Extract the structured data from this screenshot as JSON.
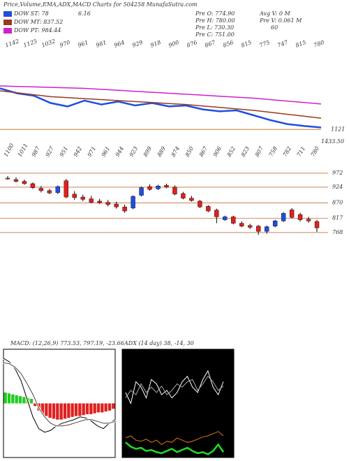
{
  "header": {
    "title": "Price,Volume,EMA,ADX,MACD Charts for 504258 MunafaSutra.com",
    "extra": "6.16",
    "info": [
      "Pre O: 774.90",
      "Pre H: 780.00",
      "Pre L: 730.30",
      "Pre C: 751.00"
    ],
    "info2": [
      "Avg V: 0  M",
      "Pre V: 0.061 M",
      "60"
    ]
  },
  "chart_data": [
    {
      "type": "line",
      "series": [
        {
          "name": "DOW ST: 78",
          "color": "#1f4fe0",
          "values": [
            1205,
            1195,
            1190,
            1175,
            1168,
            1180,
            1172,
            1178,
            1170,
            1175,
            1168,
            1170,
            1162,
            1158,
            1160,
            1150,
            1140,
            1132,
            1128,
            1125
          ]
        },
        {
          "name": "DOW MT: 837.52",
          "color": "#9a3a1a",
          "values": [
            1200,
            1196,
            1192,
            1188,
            1186,
            1184,
            1182,
            1180,
            1178,
            1176,
            1174,
            1172,
            1169,
            1166,
            1163,
            1160,
            1156,
            1152,
            1148,
            1144
          ]
        },
        {
          "name": "DOW PT: 984.44",
          "color": "#d020d0",
          "values": [
            1210,
            1209,
            1208,
            1207,
            1206,
            1205,
            1203,
            1201,
            1199,
            1197,
            1195,
            1193,
            1191,
            1189,
            1187,
            1185,
            1182,
            1179,
            1176,
            1173
          ]
        }
      ],
      "ylim": [
        1100,
        1300
      ],
      "yticks": [
        1121
      ],
      "annotation": "1433.50",
      "top_labels": [
        "1142",
        "1125",
        "1032",
        "970",
        "961",
        "981",
        "964",
        "929",
        "918",
        "900",
        "876",
        "867",
        "856",
        "815",
        "775",
        "747",
        "815",
        "780"
      ]
    },
    {
      "type": "candlestick",
      "candles": [
        {
          "o": 955,
          "h": 962,
          "l": 950,
          "c": 952
        },
        {
          "o": 950,
          "h": 958,
          "l": 940,
          "c": 944
        },
        {
          "o": 944,
          "h": 950,
          "l": 932,
          "c": 936
        },
        {
          "o": 936,
          "h": 940,
          "l": 918,
          "c": 922
        },
        {
          "o": 920,
          "h": 928,
          "l": 906,
          "c": 912
        },
        {
          "o": 912,
          "h": 918,
          "l": 900,
          "c": 904
        },
        {
          "o": 905,
          "h": 930,
          "l": 900,
          "c": 926
        },
        {
          "o": 946,
          "h": 952,
          "l": 886,
          "c": 890
        },
        {
          "o": 900,
          "h": 910,
          "l": 880,
          "c": 888
        },
        {
          "o": 890,
          "h": 898,
          "l": 876,
          "c": 882
        },
        {
          "o": 884,
          "h": 894,
          "l": 868,
          "c": 872
        },
        {
          "o": 876,
          "h": 884,
          "l": 866,
          "c": 870
        },
        {
          "o": 872,
          "h": 880,
          "l": 858,
          "c": 864
        },
        {
          "o": 866,
          "h": 874,
          "l": 850,
          "c": 856
        },
        {
          "o": 856,
          "h": 864,
          "l": 836,
          "c": 842
        },
        {
          "o": 852,
          "h": 896,
          "l": 848,
          "c": 892
        },
        {
          "o": 896,
          "h": 926,
          "l": 892,
          "c": 922
        },
        {
          "o": 926,
          "h": 934,
          "l": 912,
          "c": 916
        },
        {
          "o": 918,
          "h": 932,
          "l": 914,
          "c": 928
        },
        {
          "o": 930,
          "h": 936,
          "l": 920,
          "c": 924
        },
        {
          "o": 924,
          "h": 930,
          "l": 896,
          "c": 900
        },
        {
          "o": 902,
          "h": 908,
          "l": 882,
          "c": 886
        },
        {
          "o": 886,
          "h": 894,
          "l": 874,
          "c": 878
        },
        {
          "o": 876,
          "h": 880,
          "l": 852,
          "c": 856
        },
        {
          "o": 858,
          "h": 862,
          "l": 838,
          "c": 842
        },
        {
          "o": 845,
          "h": 850,
          "l": 800,
          "c": 822
        },
        {
          "o": 812,
          "h": 826,
          "l": 808,
          "c": 822
        },
        {
          "o": 822,
          "h": 826,
          "l": 796,
          "c": 800
        },
        {
          "o": 800,
          "h": 806,
          "l": 786,
          "c": 790
        },
        {
          "o": 792,
          "h": 798,
          "l": 780,
          "c": 786
        },
        {
          "o": 790,
          "h": 794,
          "l": 760,
          "c": 772
        },
        {
          "o": 772,
          "h": 792,
          "l": 764,
          "c": 788
        },
        {
          "o": 790,
          "h": 812,
          "l": 786,
          "c": 808
        },
        {
          "o": 808,
          "h": 838,
          "l": 804,
          "c": 834
        },
        {
          "o": 846,
          "h": 852,
          "l": 816,
          "c": 820
        },
        {
          "o": 830,
          "h": 836,
          "l": 806,
          "c": 812
        },
        {
          "o": 814,
          "h": 822,
          "l": 802,
          "c": 808
        },
        {
          "o": 806,
          "h": 812,
          "l": 770,
          "c": 784
        }
      ],
      "up_color": "#1f4fe0",
      "down_color": "#e02020",
      "ylim": [
        679,
        1051
      ],
      "yticks": [
        972,
        924,
        870,
        817,
        768
      ],
      "top_labels": [
        "1100",
        "1011",
        "987",
        "927",
        "951",
        "942",
        "971",
        "961",
        "944",
        "923",
        "899",
        "889",
        "874",
        "850",
        "867",
        "906",
        "852",
        "823",
        "807",
        "758",
        "782",
        "711",
        "780"
      ]
    },
    {
      "type": "macd",
      "title": "MACD: (12,26,9) 773.53, 797.19, -23.66",
      "series": [
        {
          "color": "#000000",
          "values": [
            50,
            46,
            38,
            25,
            5,
            -15,
            -28,
            -32,
            -30,
            -25,
            -22,
            -20,
            -18,
            -15,
            -16,
            -20,
            -25,
            -28,
            -22,
            -18
          ]
        },
        {
          "color": "#444444",
          "values": [
            45,
            44,
            40,
            33,
            22,
            10,
            -5,
            -15,
            -22,
            -25,
            -25,
            -24,
            -22,
            -20,
            -18,
            -18,
            -20,
            -22,
            -22,
            -20
          ]
        }
      ],
      "histogram": [
        12,
        11,
        10,
        9,
        8,
        7,
        6,
        5,
        -3,
        -8,
        -12,
        -14,
        -16,
        -17,
        -18,
        -18,
        -17,
        -16,
        -15,
        -14,
        -14,
        -13,
        -12,
        -12,
        -11,
        -10,
        -10,
        -9,
        -8,
        -6
      ],
      "pos_color": "#22cc22",
      "neg_color": "#e02020",
      "ylim": [
        -60,
        60
      ]
    },
    {
      "type": "line",
      "title": "ADX (14 day) 38, -14, 30",
      "series": [
        {
          "color": "#ffffff",
          "values": [
            60,
            50,
            70,
            65,
            55,
            72,
            68,
            58,
            62,
            55,
            60,
            70,
            75,
            65,
            60,
            72,
            80,
            65,
            58,
            70
          ]
        },
        {
          "color": "#aaaaaa",
          "values": [
            55,
            62,
            58,
            68,
            60,
            65,
            60,
            66,
            58,
            62,
            68,
            65,
            70,
            72,
            62,
            68,
            75,
            70,
            62,
            66
          ]
        },
        {
          "color": "#e07a10",
          "values": [
            18,
            20,
            16,
            15,
            17,
            14,
            16,
            12,
            15,
            14,
            18,
            16,
            14,
            15,
            17,
            19,
            20,
            22,
            24,
            20
          ]
        },
        {
          "color": "#22dd22",
          "values": [
            14,
            10,
            8,
            9,
            6,
            7,
            5,
            4,
            6,
            8,
            5,
            7,
            9,
            6,
            4,
            5,
            3,
            6,
            12,
            5
          ]
        }
      ],
      "ylim": [
        0,
        100
      ]
    }
  ]
}
